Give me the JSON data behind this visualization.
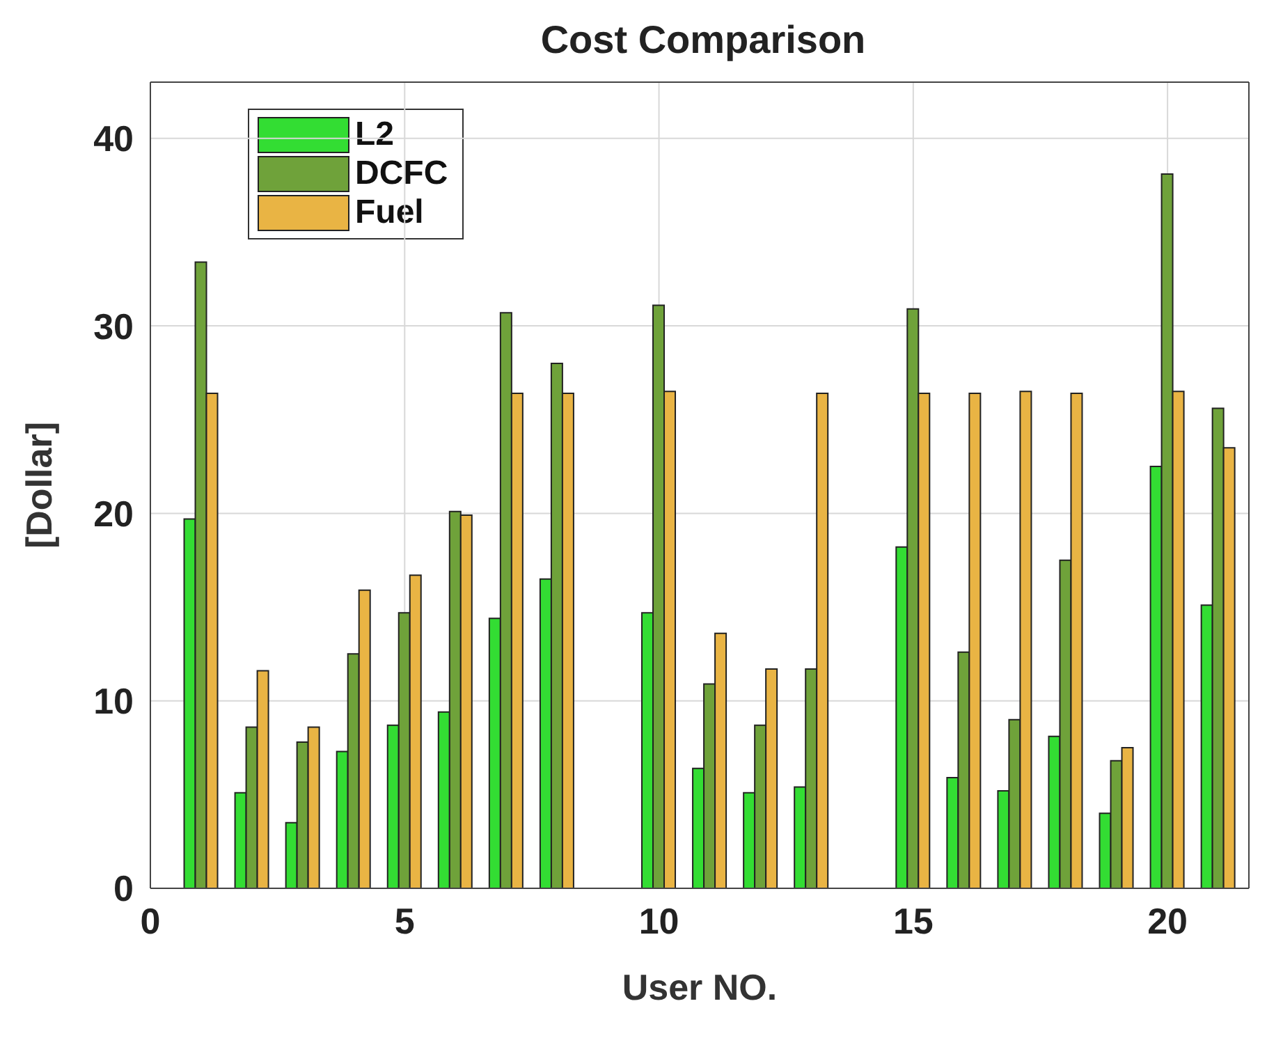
{
  "chart_data": {
    "type": "bar",
    "title": "Cost Comparison",
    "xlabel": "User NO.",
    "ylabel": "[Dollar]",
    "x": [
      1,
      2,
      3,
      4,
      5,
      6,
      7,
      8,
      9,
      10,
      11,
      12,
      13,
      14,
      15,
      16,
      17,
      18,
      19,
      20,
      21
    ],
    "series": [
      {
        "name": "L2",
        "color": "#33dd33",
        "values": [
          19.7,
          5.1,
          3.5,
          7.3,
          8.7,
          9.4,
          14.4,
          16.5,
          null,
          14.7,
          6.4,
          5.1,
          5.4,
          null,
          18.2,
          5.9,
          5.2,
          8.1,
          4.0,
          22.5,
          15.1
        ]
      },
      {
        "name": "DCFC",
        "color": "#6fa23a",
        "values": [
          33.4,
          8.6,
          7.8,
          12.5,
          14.7,
          20.1,
          30.7,
          28.0,
          null,
          31.1,
          10.9,
          8.7,
          11.7,
          null,
          30.9,
          12.6,
          9.0,
          17.5,
          6.8,
          38.1,
          25.6
        ]
      },
      {
        "name": "Fuel",
        "color": "#e9b444",
        "values": [
          26.4,
          11.6,
          8.6,
          15.9,
          16.7,
          19.9,
          26.4,
          26.4,
          null,
          26.5,
          13.6,
          11.7,
          26.4,
          null,
          26.4,
          26.4,
          26.5,
          26.4,
          7.5,
          26.5,
          23.5
        ]
      }
    ],
    "xlim": [
      0,
      21.6
    ],
    "xticks": [
      0,
      5,
      10,
      15,
      20
    ],
    "ylim": [
      0,
      43
    ],
    "yticks": [
      0,
      10,
      20,
      30,
      40
    ],
    "grid": true,
    "legend": "top left"
  }
}
